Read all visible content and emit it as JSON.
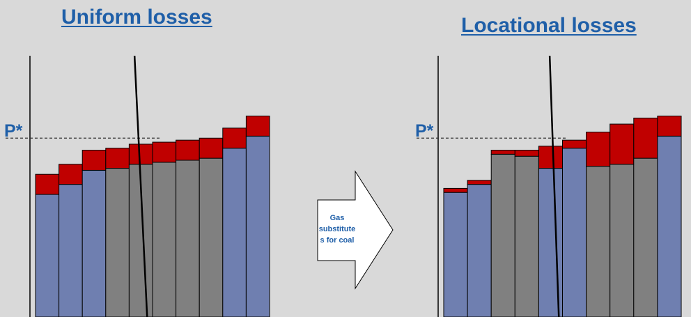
{
  "titles": {
    "left": "Uniform losses",
    "right": "Locational losses"
  },
  "p_star_label": "P*",
  "arrow_label_lines": [
    "Gas",
    "substitute",
    "s for coal"
  ],
  "colors": {
    "background": "#d9d9d9",
    "gas": "#6f7fb0",
    "coal": "#808080",
    "losses": "#c00000",
    "title": "#1f5fa8",
    "outline": "#000000"
  },
  "chart_data": [
    {
      "type": "bar",
      "title": "Uniform losses",
      "stacked": true,
      "series_order": [
        "cost",
        "losses"
      ],
      "bars": [
        {
          "fuel": "gas",
          "cost": 30.5,
          "losses": 5
        },
        {
          "fuel": "gas",
          "cost": 33,
          "losses": 5
        },
        {
          "fuel": "gas",
          "cost": 36.5,
          "losses": 5
        },
        {
          "fuel": "coal",
          "cost": 37,
          "losses": 5
        },
        {
          "fuel": "coal",
          "cost": 38,
          "losses": 5
        },
        {
          "fuel": "coal",
          "cost": 38.5,
          "losses": 5
        },
        {
          "fuel": "coal",
          "cost": 39,
          "losses": 5
        },
        {
          "fuel": "coal",
          "cost": 39.5,
          "losses": 5
        },
        {
          "fuel": "gas",
          "cost": 42,
          "losses": 5
        },
        {
          "fuel": "gas",
          "cost": 45,
          "losses": 5
        }
      ],
      "price_line": 44.5,
      "demand_line": {
        "top": [
          27.5,
          65
        ],
        "bottom": [
          31,
          0
        ]
      },
      "ylim": [
        0,
        65
      ]
    },
    {
      "type": "bar",
      "title": "Locational losses",
      "stacked": true,
      "series_order": [
        "cost",
        "losses"
      ],
      "bars": [
        {
          "fuel": "gas",
          "cost": 31,
          "losses": 1
        },
        {
          "fuel": "gas",
          "cost": 33,
          "losses": 1
        },
        {
          "fuel": "coal",
          "cost": 40.5,
          "losses": 1
        },
        {
          "fuel": "coal",
          "cost": 40,
          "losses": 1.5
        },
        {
          "fuel": "gas",
          "cost": 37,
          "losses": 5.5
        },
        {
          "fuel": "gas",
          "cost": 42,
          "losses": 2
        },
        {
          "fuel": "coal",
          "cost": 37.5,
          "losses": 8.5
        },
        {
          "fuel": "coal",
          "cost": 38,
          "losses": 10
        },
        {
          "fuel": "coal",
          "cost": 39.5,
          "losses": 10
        },
        {
          "fuel": "gas",
          "cost": 45,
          "losses": 5
        }
      ],
      "price_line": 44.5,
      "demand_line": {
        "top": [
          29,
          65
        ],
        "bottom": [
          31.5,
          0
        ]
      },
      "ylim": [
        0,
        65
      ]
    }
  ]
}
